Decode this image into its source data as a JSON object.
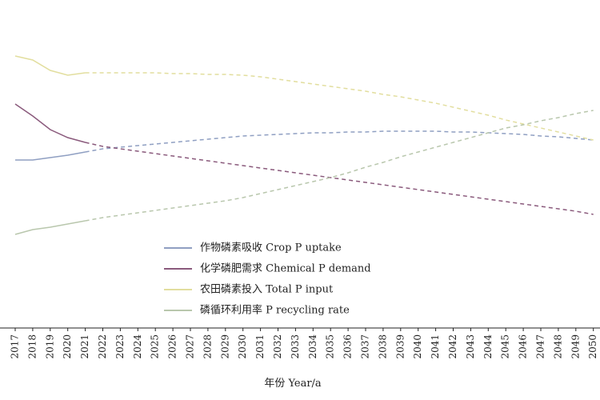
{
  "chart_data": {
    "type": "line",
    "x_label": "年份 Year/a",
    "categories": [
      "2017",
      "2018",
      "2019",
      "2020",
      "2021",
      "2022",
      "2023",
      "2024",
      "2025",
      "2026",
      "2027",
      "2028",
      "2029",
      "2030",
      "2031",
      "2032",
      "2033",
      "2034",
      "2035",
      "2036",
      "2037",
      "2038",
      "2039",
      "2040",
      "2041",
      "2042",
      "2043",
      "2044",
      "2045",
      "2046",
      "2047",
      "2048",
      "2049",
      "2050"
    ],
    "ylim": [
      0,
      380
    ],
    "series": [
      {
        "name": "作物磷素吸收 Crop P uptake",
        "color": "#8f9fc2",
        "values": [
          210,
          210,
          213,
          216,
          220,
          224,
          226,
          228,
          230,
          232,
          234,
          236,
          238,
          240,
          241,
          242,
          243,
          244,
          244,
          245,
          245,
          246,
          246,
          246,
          246,
          245,
          245,
          244,
          243,
          242,
          240,
          239,
          237,
          235
        ]
      },
      {
        "name": "化学磷肥需求 Chemical P demand",
        "color": "#8a5a7c",
        "values": [
          280,
          265,
          248,
          238,
          232,
          227,
          224,
          221,
          218,
          215,
          212,
          209,
          206,
          203,
          200,
          197,
          194,
          191,
          188,
          185,
          182,
          179,
          176,
          173,
          170,
          167,
          164,
          161,
          158,
          155,
          152,
          149,
          146,
          142
        ]
      },
      {
        "name": "农田磷素投入 Total P input",
        "color": "#e2de9e",
        "values": [
          340,
          335,
          322,
          316,
          319,
          319,
          319,
          319,
          319,
          318,
          318,
          317,
          317,
          316,
          314,
          311,
          308,
          305,
          302,
          299,
          296,
          292,
          289,
          285,
          281,
          276,
          271,
          266,
          260,
          255,
          250,
          245,
          240,
          235
        ]
      },
      {
        "name": "磷循环利用率 P recycling rate",
        "color": "#b9c7ad",
        "values": [
          117,
          123,
          126,
          130,
          134,
          138,
          141,
          144,
          147,
          150,
          153,
          156,
          159,
          163,
          168,
          173,
          178,
          183,
          188,
          194,
          201,
          207,
          214,
          220,
          226,
          232,
          238,
          244,
          250,
          254,
          259,
          263,
          268,
          272
        ]
      }
    ]
  }
}
